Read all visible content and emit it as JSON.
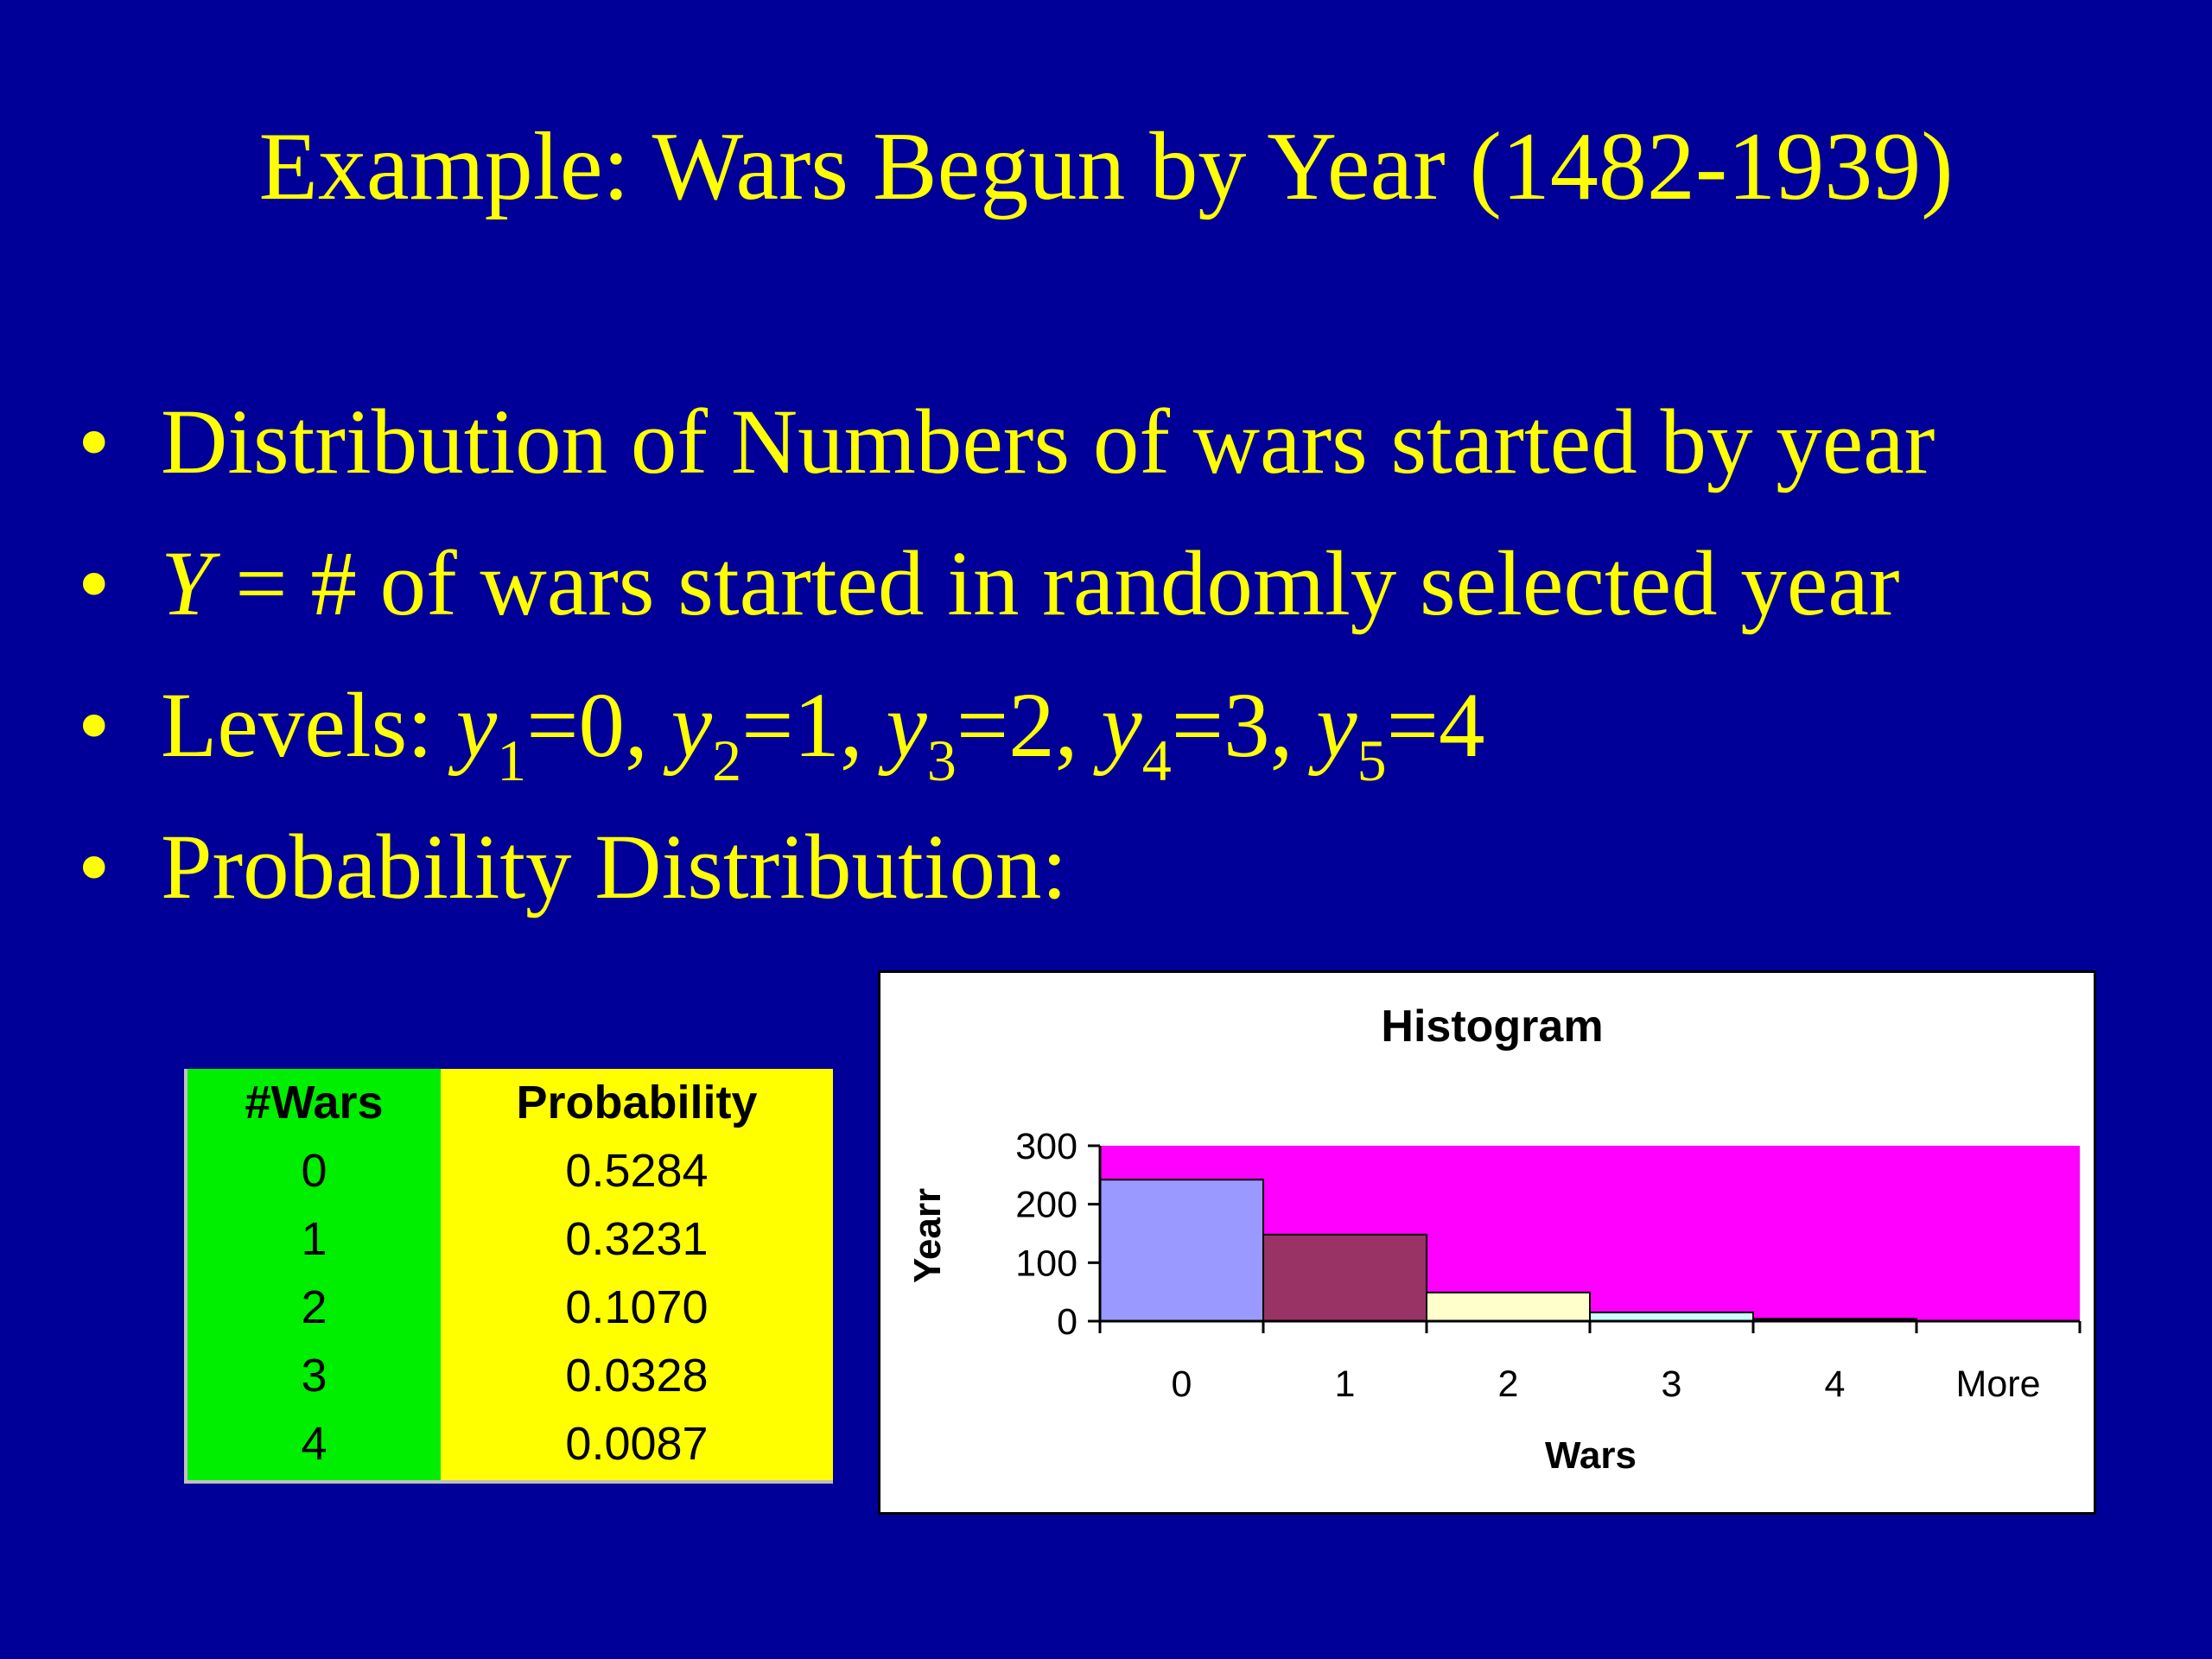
{
  "slide": {
    "title": "Example: Wars Begun by Year (1482-1939)",
    "bullet_char": "•",
    "bullets": {
      "b1": "Distribution of Numbers of wars started by year",
      "b2_var": "Y",
      "b2_rest": " = # of wars started in randomly selected year",
      "b3_prefix": "Levels: ",
      "b4": "Probability Distribution:"
    },
    "levels": [
      {
        "var": "y",
        "sub": "1",
        "val": "=0",
        "sep": ", "
      },
      {
        "var": "y",
        "sub": "2",
        "val": "=1",
        "sep": ", "
      },
      {
        "var": "y",
        "sub": "3",
        "val": "=2",
        "sep": ", "
      },
      {
        "var": "y",
        "sub": "4",
        "val": "=3",
        "sep": ", "
      },
      {
        "var": "y",
        "sub": "5",
        "val": "=4",
        "sep": ""
      }
    ]
  },
  "table": {
    "headers": {
      "wars": "#Wars",
      "probability": "Probability"
    },
    "rows": [
      {
        "wars": "0",
        "probability": "0.5284"
      },
      {
        "wars": "1",
        "probability": "0.3231"
      },
      {
        "wars": "2",
        "probability": "0.1070"
      },
      {
        "wars": "3",
        "probability": "0.0328"
      },
      {
        "wars": "4",
        "probability": "0.0087"
      }
    ],
    "colors": {
      "wars_bg": "#00ee00",
      "probability_bg": "#ffff00"
    }
  },
  "chart_data": {
    "type": "bar",
    "title": "Histogram",
    "xlabel": "Wars",
    "ylabel": "Yearr",
    "categories": [
      "0",
      "1",
      "2",
      "3",
      "4",
      "More"
    ],
    "values": [
      242,
      148,
      49,
      15,
      4,
      0
    ],
    "ylim": [
      0,
      300
    ],
    "yticks": [
      0,
      100,
      200,
      300
    ],
    "grid": false,
    "legend": "none",
    "plot_bg": "#ff00ff",
    "bar_colors": [
      "#9999ff",
      "#993366",
      "#ffffcc",
      "#ccffff",
      "#660066",
      "#ff8080"
    ]
  }
}
